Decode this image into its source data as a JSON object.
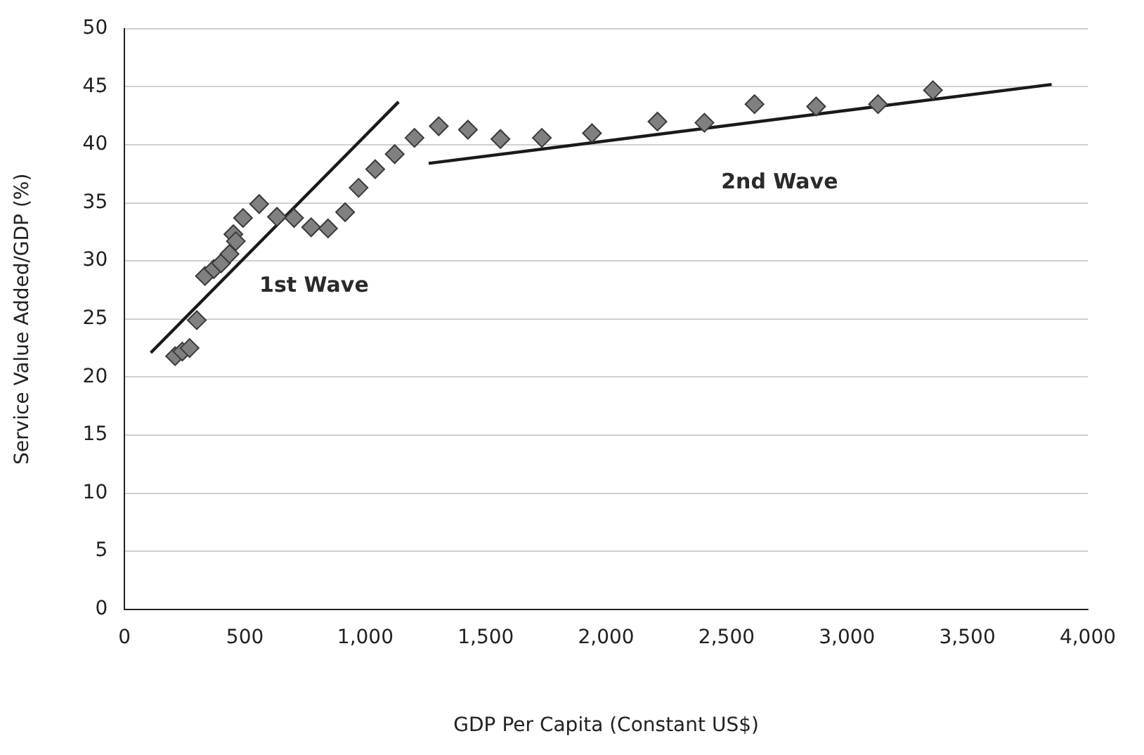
{
  "chart_data": {
    "type": "scatter",
    "xlabel": "GDP Per Capita (Constant US$)",
    "ylabel": "Service Value Added/GDP (%)",
    "series": [
      {
        "type": "scatter",
        "color": "#808080",
        "marker": "diamond",
        "x": [
          210,
          240,
          270,
          300,
          334,
          371,
          401,
          436,
          452,
          462,
          492,
          559,
          633,
          704,
          775,
          845,
          916,
          972,
          1041,
          1122,
          1204,
          1305,
          1426,
          1561,
          1733,
          1941,
          2213,
          2408,
          2616,
          2872,
          3129,
          3357
        ],
        "values": [
          21.8,
          22.2,
          22.5,
          24.9,
          28.7,
          29.3,
          29.8,
          30.6,
          32.3,
          31.7,
          33.7,
          34.9,
          33.8,
          33.7,
          32.9,
          32.8,
          34.2,
          36.3,
          37.9,
          39.2,
          40.6,
          41.6,
          41.3,
          40.5,
          40.6,
          41.0,
          42.0,
          41.9,
          43.5,
          43.3,
          43.5,
          44.7
        ]
      },
      {
        "type": "line",
        "color": "#1a1a1a",
        "marker": "none",
        "x": [
          109,
          1138
        ],
        "values": [
          22.1,
          43.7
        ]
      },
      {
        "type": "line",
        "color": "#1a1a1a",
        "marker": "none",
        "x": [
          1263,
          3850
        ],
        "values": [
          38.4,
          45.2
        ]
      }
    ],
    "annotations": [
      "1st Wave",
      "2nd Wave"
    ],
    "xlim": [
      0,
      4000
    ],
    "xticks": [
      0,
      500,
      {
        "value": 1000,
        "label": "1,000"
      },
      {
        "value": 1500,
        "label": "1,500"
      },
      {
        "value": 2000,
        "label": "2,000"
      },
      {
        "value": 2500,
        "label": "2,500"
      },
      {
        "value": 3000,
        "label": "3,000"
      },
      {
        "value": 3500,
        "label": "3,500"
      },
      {
        "value": 4000,
        "label": "4,000"
      }
    ],
    "ylim": [
      0,
      50
    ],
    "yticks": [
      0,
      5,
      10,
      15,
      20,
      25,
      30,
      35,
      40,
      45,
      50
    ],
    "grid": "y",
    "legend": false
  }
}
